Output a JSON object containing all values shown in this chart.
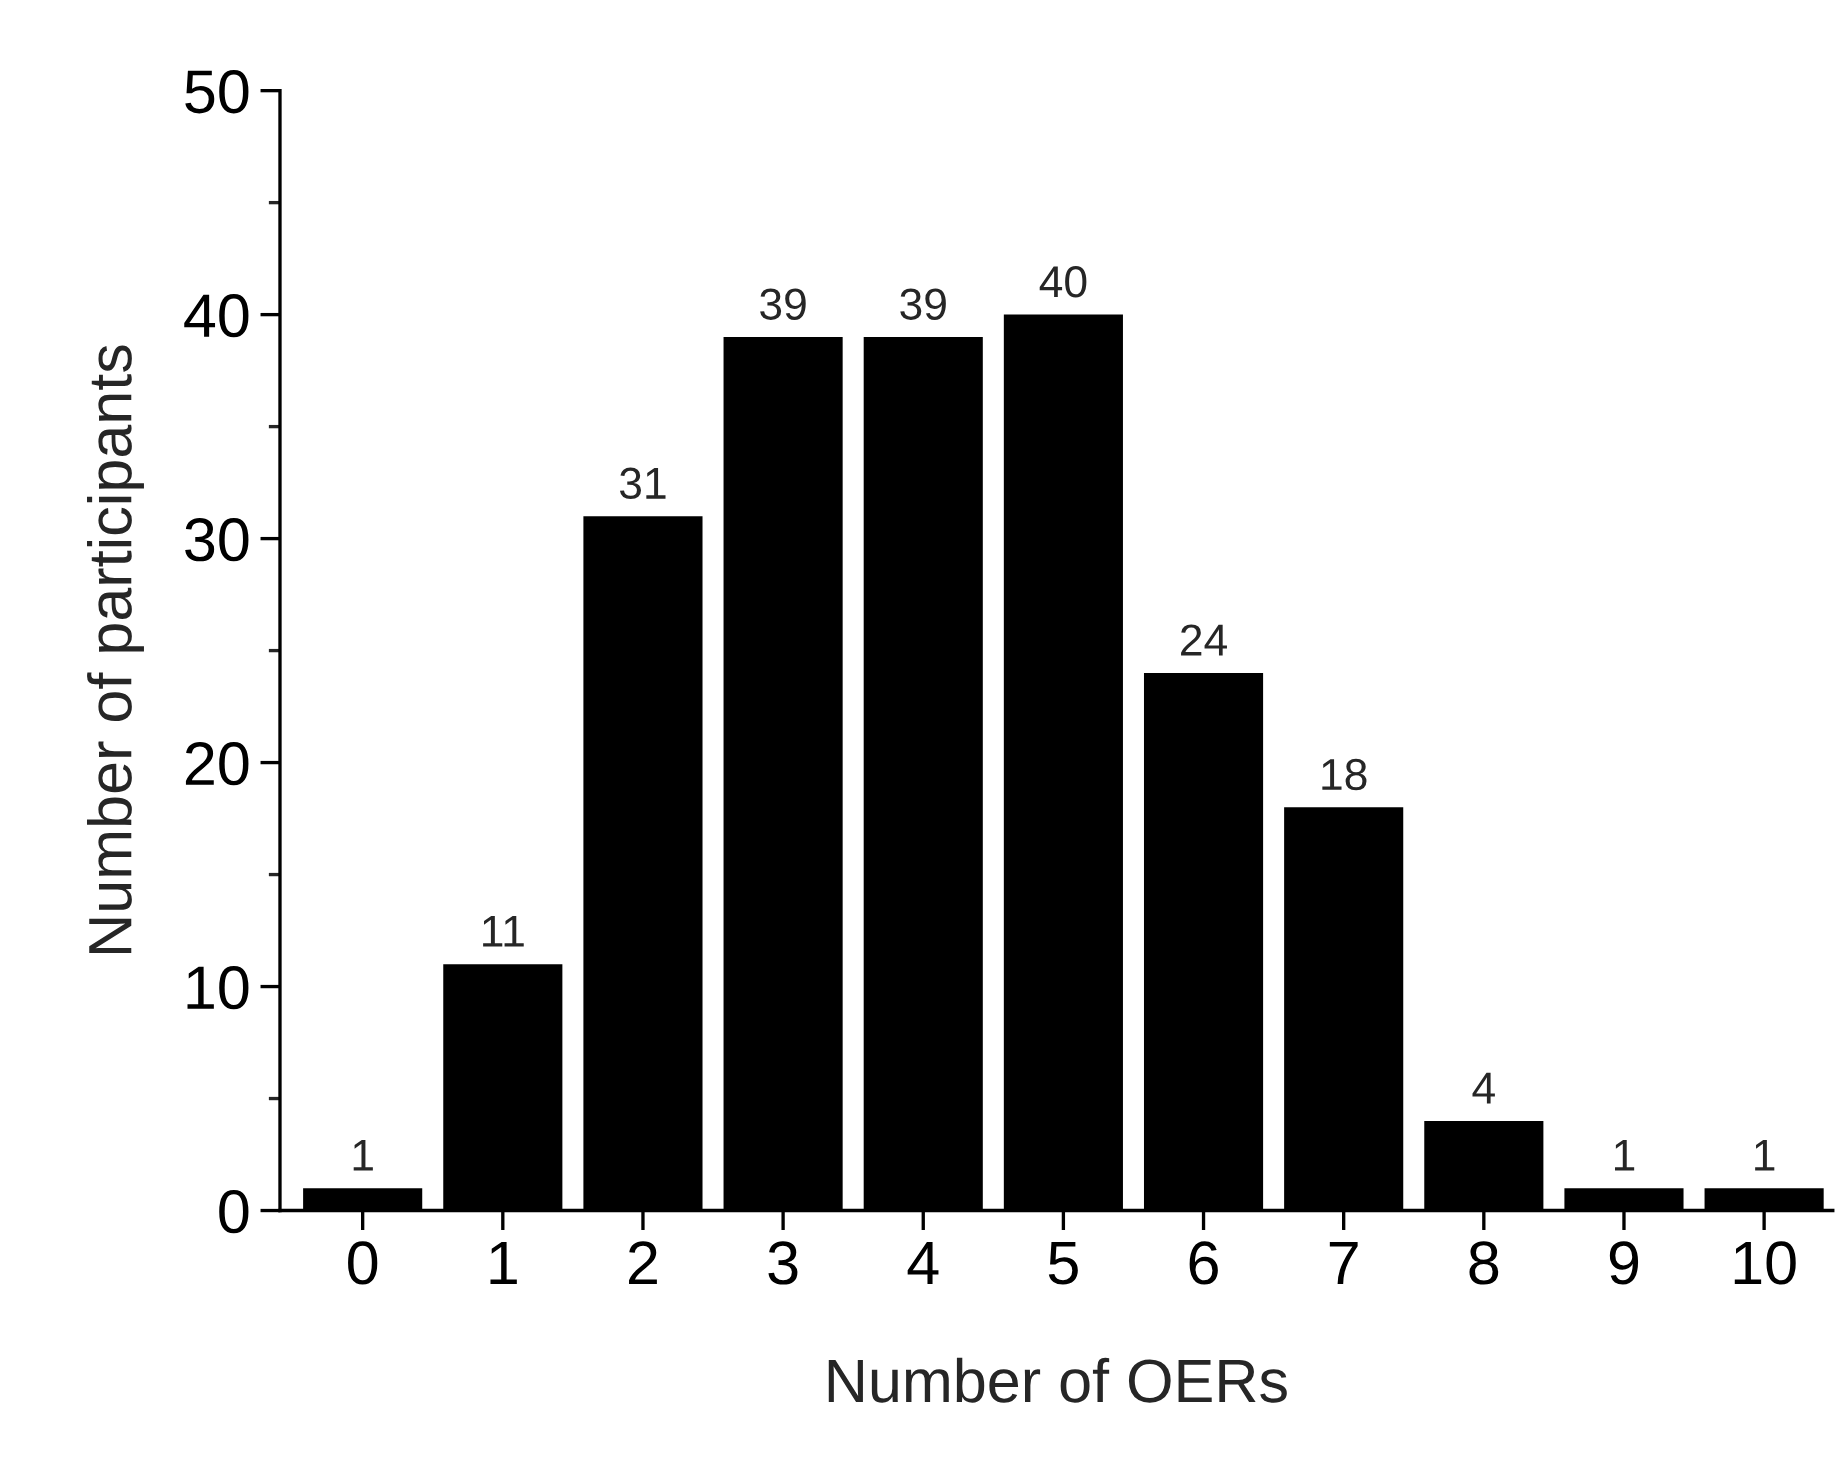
{
  "chart_data": {
    "type": "bar",
    "xlabel": "Number of OERs",
    "ylabel": "Number of participants",
    "categories": [
      "0",
      "1",
      "2",
      "3",
      "4",
      "5",
      "6",
      "7",
      "8",
      "9",
      "10"
    ],
    "values": [
      1,
      11,
      31,
      39,
      39,
      40,
      24,
      18,
      4,
      1,
      1
    ],
    "color": "#000000",
    "ylim": [
      0,
      50
    ],
    "yticks": [
      0,
      10,
      20,
      30,
      40,
      50
    ],
    "data_labels": true,
    "grid": false,
    "legend": false
  }
}
